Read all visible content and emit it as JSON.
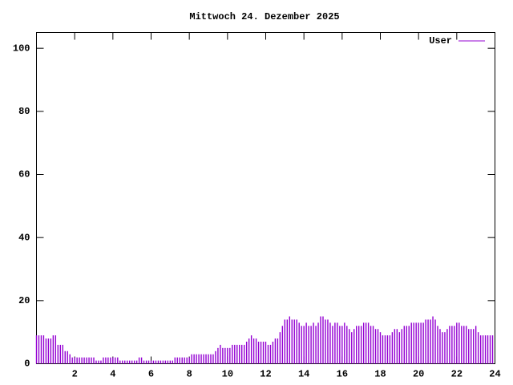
{
  "chart_data": {
    "type": "impulse",
    "title": "Mittwoch 24. Dezember 2025",
    "x": [
      0,
      0.125,
      0.25,
      0.375,
      0.5,
      0.625,
      0.75,
      0.875,
      1,
      1.125,
      1.25,
      1.375,
      1.5,
      1.625,
      1.75,
      1.875,
      2,
      2.125,
      2.25,
      2.375,
      2.5,
      2.625,
      2.75,
      2.875,
      3,
      3.125,
      3.25,
      3.375,
      3.5,
      3.625,
      3.75,
      3.875,
      4,
      4.125,
      4.25,
      4.375,
      4.5,
      4.625,
      4.75,
      4.875,
      5,
      5.125,
      5.25,
      5.375,
      5.5,
      5.625,
      5.75,
      5.875,
      6,
      6.125,
      6.25,
      6.375,
      6.5,
      6.625,
      6.75,
      6.875,
      7,
      7.125,
      7.25,
      7.375,
      7.5,
      7.625,
      7.75,
      7.875,
      8,
      8.125,
      8.25,
      8.375,
      8.5,
      8.625,
      8.75,
      8.875,
      9,
      9.125,
      9.25,
      9.375,
      9.5,
      9.625,
      9.75,
      9.875,
      10,
      10.125,
      10.25,
      10.375,
      10.5,
      10.625,
      10.75,
      10.875,
      11,
      11.125,
      11.25,
      11.375,
      11.5,
      11.625,
      11.75,
      11.875,
      12,
      12.125,
      12.25,
      12.375,
      12.5,
      12.625,
      12.75,
      12.875,
      13,
      13.125,
      13.25,
      13.375,
      13.5,
      13.625,
      13.75,
      13.875,
      14,
      14.125,
      14.25,
      14.375,
      14.5,
      14.625,
      14.75,
      14.875,
      15,
      15.125,
      15.25,
      15.375,
      15.5,
      15.625,
      15.75,
      15.875,
      16,
      16.125,
      16.25,
      16.375,
      16.5,
      16.625,
      16.75,
      16.875,
      17,
      17.125,
      17.25,
      17.375,
      17.5,
      17.625,
      17.75,
      17.875,
      18,
      18.125,
      18.25,
      18.375,
      18.5,
      18.625,
      18.75,
      18.875,
      19,
      19.125,
      19.25,
      19.375,
      19.5,
      19.625,
      19.75,
      19.875,
      20,
      20.125,
      20.25,
      20.375,
      20.5,
      20.625,
      20.75,
      20.875,
      21,
      21.125,
      21.25,
      21.375,
      21.5,
      21.625,
      21.75,
      21.875,
      22,
      22.125,
      22.25,
      22.375,
      22.5,
      22.625,
      22.75,
      22.875,
      23,
      23.125,
      23.25,
      23.375,
      23.5,
      23.625,
      23.75,
      23.875
    ],
    "series": [
      {
        "name": "User",
        "color": "#9400d3",
        "values": [
          9,
          9,
          9,
          9,
          8,
          8,
          8,
          9,
          9,
          6,
          6,
          6,
          4,
          4,
          3,
          2,
          2,
          2,
          2,
          2,
          2,
          2,
          2,
          2,
          2,
          1,
          1,
          1,
          2,
          2,
          2,
          2,
          2,
          2,
          2,
          1,
          1,
          1,
          1,
          1,
          1,
          1,
          1,
          2,
          2,
          1,
          1,
          1,
          1,
          1,
          1,
          1,
          1,
          1,
          1,
          1,
          1,
          1,
          2,
          2,
          2,
          2,
          2,
          2,
          2,
          3,
          3,
          3,
          3,
          3,
          3,
          3,
          3,
          3,
          3,
          4,
          5,
          6,
          5,
          5,
          5,
          5,
          6,
          6,
          6,
          6,
          6,
          6,
          7,
          8,
          9,
          8,
          8,
          7,
          7,
          7,
          7,
          6,
          6,
          7,
          8,
          8,
          10,
          12,
          14,
          14,
          15,
          14,
          14,
          14,
          13,
          12,
          12,
          13,
          12,
          12,
          13,
          12,
          13,
          15,
          15,
          14,
          14,
          13,
          12,
          13,
          13,
          12,
          12,
          13,
          12,
          11,
          10,
          11,
          12,
          12,
          12,
          13,
          13,
          13,
          12,
          12,
          11,
          11,
          10,
          9,
          9,
          9,
          9,
          10,
          11,
          11,
          10,
          11,
          12,
          12,
          12,
          13,
          13,
          13,
          13,
          13,
          13,
          14,
          14,
          14,
          15,
          14,
          12,
          11,
          10,
          10,
          11,
          12,
          12,
          12,
          13,
          13,
          12,
          12,
          12,
          11,
          11,
          11,
          12,
          10,
          9,
          9,
          9,
          9,
          9,
          9
        ]
      }
    ],
    "xlim": [
      0,
      24
    ],
    "xticks": [
      2,
      4,
      6,
      8,
      10,
      12,
      14,
      16,
      18,
      20,
      22,
      24
    ],
    "ylim": [
      0,
      105
    ],
    "yticks": [
      0,
      20,
      40,
      60,
      80,
      100
    ]
  }
}
